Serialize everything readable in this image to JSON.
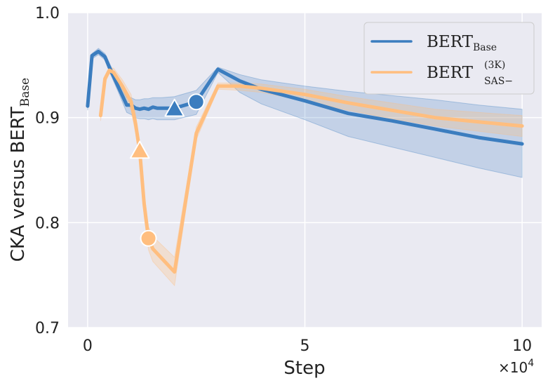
{
  "chart_data": {
    "type": "line",
    "title": "",
    "xlabel": "Step",
    "x_multiplier": "×10",
    "x_multiplier_exp": "4",
    "ylabel_main": "CKA versus BERT",
    "ylabel_sub": "Base",
    "xlim": [
      -0.45,
      10.45
    ],
    "ylim": [
      0.7,
      1.0
    ],
    "xticks": [
      0,
      5,
      10
    ],
    "xtick_labels": [
      "0",
      "5",
      "10"
    ],
    "yticks": [
      0.7,
      0.8,
      0.9,
      1.0
    ],
    "ytick_labels": [
      "0.7",
      "0.8",
      "0.9",
      "1.0"
    ],
    "grid": true,
    "legend_position": "top-right",
    "series": [
      {
        "name": "BERT",
        "name_sub": "Base",
        "name_sup": "",
        "color": "#3b7dbf",
        "x": [
          0,
          0.1,
          0.25,
          0.4,
          0.5,
          0.7,
          0.9,
          1.0,
          1.1,
          1.2,
          1.3,
          1.4,
          1.5,
          1.6,
          1.7,
          2.0,
          2.5,
          3.0,
          3.5,
          4.0,
          5.0,
          6.0,
          7.0,
          8.0,
          9.0,
          10.0
        ],
        "y": [
          0.911,
          0.959,
          0.963,
          0.958,
          0.948,
          0.93,
          0.912,
          0.912,
          0.909,
          0.908,
          0.909,
          0.908,
          0.91,
          0.909,
          0.909,
          0.909,
          0.915,
          0.946,
          0.935,
          0.927,
          0.916,
          0.904,
          0.897,
          0.889,
          0.881,
          0.875
        ],
        "band_upper": [
          0.912,
          0.961,
          0.966,
          0.961,
          0.952,
          0.935,
          0.919,
          0.919,
          0.917,
          0.917,
          0.918,
          0.918,
          0.919,
          0.919,
          0.919,
          0.92,
          0.926,
          0.948,
          0.941,
          0.936,
          0.93,
          0.925,
          0.921,
          0.917,
          0.912,
          0.908
        ],
        "band_lower": [
          0.907,
          0.956,
          0.96,
          0.955,
          0.944,
          0.925,
          0.905,
          0.903,
          0.9,
          0.899,
          0.899,
          0.898,
          0.899,
          0.898,
          0.898,
          0.898,
          0.903,
          0.943,
          0.924,
          0.913,
          0.898,
          0.882,
          0.872,
          0.862,
          0.852,
          0.843
        ],
        "markers": [
          {
            "shape": "triangle",
            "x": 2.0,
            "y": 0.908
          },
          {
            "shape": "circle",
            "x": 2.5,
            "y": 0.915
          }
        ]
      },
      {
        "name": "BERT",
        "name_sub": "SAS−",
        "name_sup": "(3K)",
        "color": "#ffbe7f",
        "x": [
          0.3,
          0.4,
          0.5,
          0.6,
          0.8,
          1.0,
          1.1,
          1.2,
          1.3,
          1.4,
          1.5,
          2.0,
          2.5,
          3.0,
          3.5,
          4.0,
          5.0,
          6.0,
          7.0,
          8.0,
          9.0,
          10.0
        ],
        "y": [
          0.902,
          0.937,
          0.945,
          0.943,
          0.93,
          0.915,
          0.895,
          0.868,
          0.818,
          0.785,
          0.775,
          0.753,
          0.885,
          0.93,
          0.93,
          0.928,
          0.922,
          0.914,
          0.907,
          0.9,
          0.896,
          0.892
        ],
        "band_upper": [
          0.905,
          0.94,
          0.948,
          0.947,
          0.936,
          0.922,
          0.904,
          0.877,
          0.829,
          0.796,
          0.787,
          0.767,
          0.891,
          0.933,
          0.933,
          0.932,
          0.927,
          0.92,
          0.914,
          0.908,
          0.905,
          0.902
        ],
        "band_lower": [
          0.897,
          0.933,
          0.942,
          0.939,
          0.924,
          0.907,
          0.886,
          0.858,
          0.806,
          0.774,
          0.763,
          0.74,
          0.879,
          0.927,
          0.926,
          0.924,
          0.916,
          0.907,
          0.899,
          0.892,
          0.887,
          0.882
        ],
        "markers": [
          {
            "shape": "triangle",
            "x": 1.2,
            "y": 0.868
          },
          {
            "shape": "circle",
            "x": 1.4,
            "y": 0.785
          }
        ]
      }
    ]
  }
}
